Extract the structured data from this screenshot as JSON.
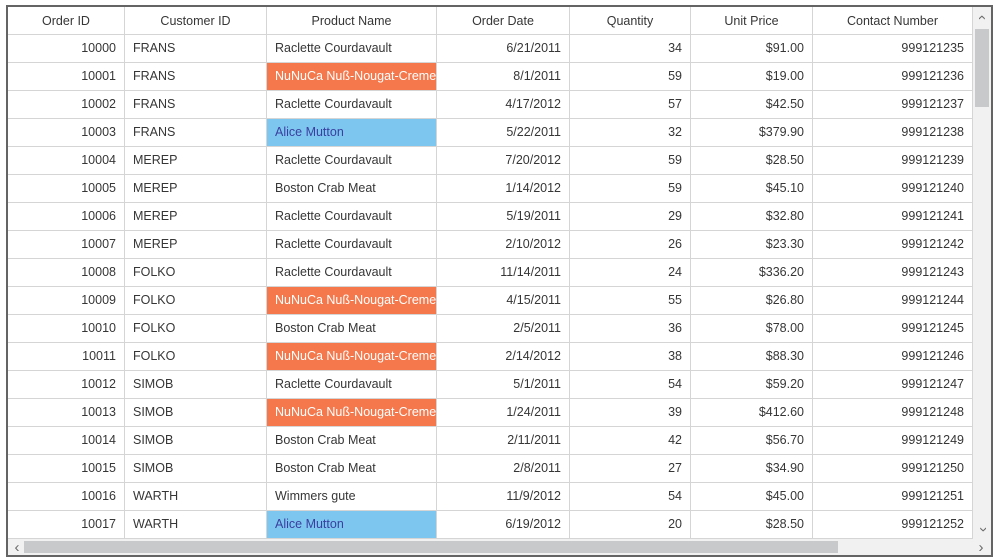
{
  "colors": {
    "outer_border": "#646464",
    "grid_line": "#d5d5d5",
    "header_text": "#363636",
    "cell_text": "#363636",
    "highlight_orange_bg": "#f4784c",
    "highlight_orange_text": "#ffffff",
    "highlight_blue_bg": "#7dc6f0",
    "highlight_blue_text": "#3b3f9f",
    "scrollbar_track": "#f1f1f2",
    "scrollbar_thumb": "#c8c9ca"
  },
  "grid": {
    "columns": [
      {
        "label": "Order ID",
        "align": "right"
      },
      {
        "label": "Customer ID",
        "align": "left"
      },
      {
        "label": "Product Name",
        "align": "left"
      },
      {
        "label": "Order Date",
        "align": "right"
      },
      {
        "label": "Quantity",
        "align": "right"
      },
      {
        "label": "Unit Price",
        "align": "right"
      },
      {
        "label": "Contact Number",
        "align": "right"
      }
    ],
    "rows": [
      {
        "cells": [
          "10000",
          "FRANS",
          "Raclette Courdavault",
          "6/21/2011",
          "34",
          "$91.00",
          "999121235"
        ],
        "product_highlight": null
      },
      {
        "cells": [
          "10001",
          "FRANS",
          "NuNuCa Nuß-Nougat-Creme",
          "8/1/2011",
          "59",
          "$19.00",
          "999121236"
        ],
        "product_highlight": "orange"
      },
      {
        "cells": [
          "10002",
          "FRANS",
          "Raclette Courdavault",
          "4/17/2012",
          "57",
          "$42.50",
          "999121237"
        ],
        "product_highlight": null
      },
      {
        "cells": [
          "10003",
          "FRANS",
          "Alice Mutton",
          "5/22/2011",
          "32",
          "$379.90",
          "999121238"
        ],
        "product_highlight": "blue"
      },
      {
        "cells": [
          "10004",
          "MEREP",
          "Raclette Courdavault",
          "7/20/2012",
          "59",
          "$28.50",
          "999121239"
        ],
        "product_highlight": null
      },
      {
        "cells": [
          "10005",
          "MEREP",
          "Boston Crab Meat",
          "1/14/2012",
          "59",
          "$45.10",
          "999121240"
        ],
        "product_highlight": null
      },
      {
        "cells": [
          "10006",
          "MEREP",
          "Raclette Courdavault",
          "5/19/2011",
          "29",
          "$32.80",
          "999121241"
        ],
        "product_highlight": null
      },
      {
        "cells": [
          "10007",
          "MEREP",
          "Raclette Courdavault",
          "2/10/2012",
          "26",
          "$23.30",
          "999121242"
        ],
        "product_highlight": null
      },
      {
        "cells": [
          "10008",
          "FOLKO",
          "Raclette Courdavault",
          "11/14/2011",
          "24",
          "$336.20",
          "999121243"
        ],
        "product_highlight": null
      },
      {
        "cells": [
          "10009",
          "FOLKO",
          "NuNuCa Nuß-Nougat-Creme",
          "4/15/2011",
          "55",
          "$26.80",
          "999121244"
        ],
        "product_highlight": "orange"
      },
      {
        "cells": [
          "10010",
          "FOLKO",
          "Boston Crab Meat",
          "2/5/2011",
          "36",
          "$78.00",
          "999121245"
        ],
        "product_highlight": null
      },
      {
        "cells": [
          "10011",
          "FOLKO",
          "NuNuCa Nuß-Nougat-Creme",
          "2/14/2012",
          "38",
          "$88.30",
          "999121246"
        ],
        "product_highlight": "orange"
      },
      {
        "cells": [
          "10012",
          "SIMOB",
          "Raclette Courdavault",
          "5/1/2011",
          "54",
          "$59.20",
          "999121247"
        ],
        "product_highlight": null
      },
      {
        "cells": [
          "10013",
          "SIMOB",
          "NuNuCa Nuß-Nougat-Creme",
          "1/24/2011",
          "39",
          "$412.60",
          "999121248"
        ],
        "product_highlight": "orange"
      },
      {
        "cells": [
          "10014",
          "SIMOB",
          "Boston Crab Meat",
          "2/11/2011",
          "42",
          "$56.70",
          "999121249"
        ],
        "product_highlight": null
      },
      {
        "cells": [
          "10015",
          "SIMOB",
          "Boston Crab Meat",
          "2/8/2011",
          "27",
          "$34.90",
          "999121250"
        ],
        "product_highlight": null
      },
      {
        "cells": [
          "10016",
          "WARTH",
          "Wimmers gute",
          "11/9/2012",
          "54",
          "$45.00",
          "999121251"
        ],
        "product_highlight": null
      },
      {
        "cells": [
          "10017",
          "WARTH",
          "Alice Mutton",
          "6/19/2012",
          "20",
          "$28.50",
          "999121252"
        ],
        "product_highlight": "blue"
      }
    ]
  },
  "scrollbar": {
    "up_glyph": "‹",
    "down_glyph": "‹",
    "left_glyph": "‹",
    "right_glyph": "›"
  }
}
